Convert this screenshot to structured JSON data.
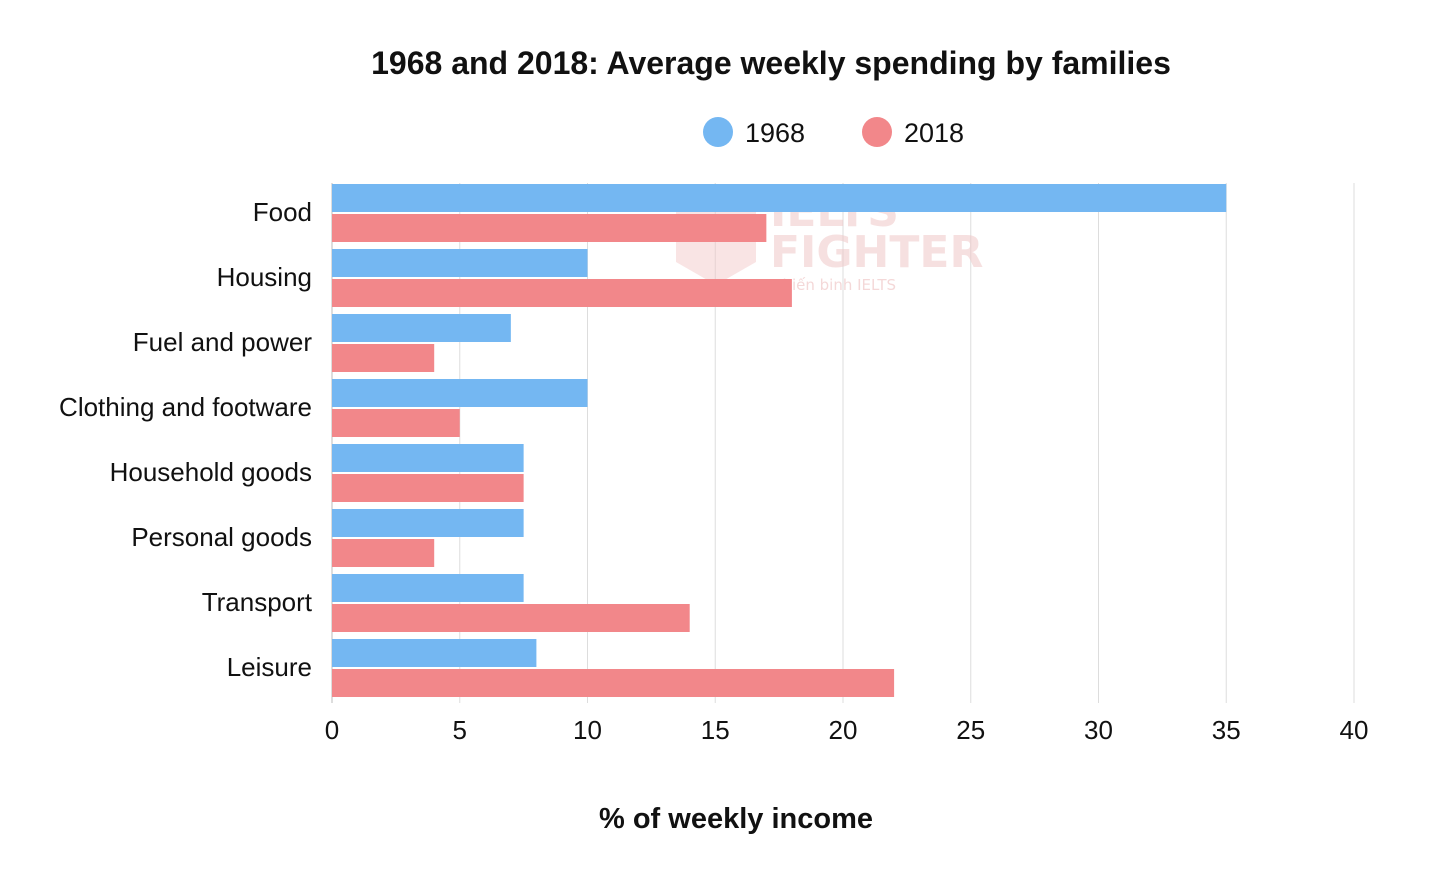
{
  "chart_data": {
    "type": "bar",
    "orientation": "horizontal",
    "title": "1968 and 2018: Average weekly spending by families",
    "xlabel": "% of weekly income",
    "ylabel": "",
    "xlim": [
      0,
      40
    ],
    "ticks": [
      0,
      5,
      10,
      15,
      20,
      25,
      30,
      35,
      40
    ],
    "grid": true,
    "legend_position": "top-center",
    "categories": [
      "Food",
      "Housing",
      "Fuel and power",
      "Clothing and footware",
      "Household goods",
      "Personal goods",
      "Transport",
      "Leisure"
    ],
    "series": [
      {
        "name": "1968",
        "color": "#74b7f2",
        "values": [
          35,
          10,
          7,
          10,
          7.5,
          7.5,
          7.5,
          8
        ]
      },
      {
        "name": "2018",
        "color": "#f2878a",
        "values": [
          17,
          18,
          4,
          5,
          7.5,
          4,
          14,
          22
        ]
      }
    ]
  },
  "watermark": {
    "line1": "IELTS",
    "line2": "FIGHTER",
    "line3": "Chiến binh IELTS"
  }
}
